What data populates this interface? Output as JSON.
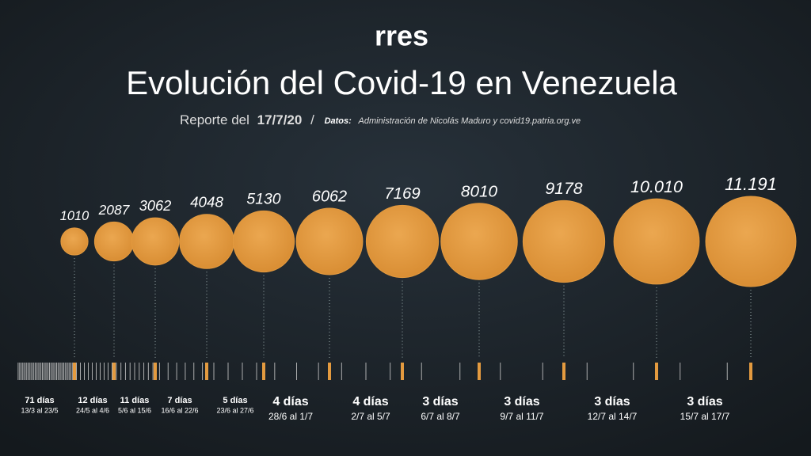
{
  "chart_data": {
    "type": "bubble",
    "logo": "rres",
    "title": "Evolución del Covid-19 en Venezuela",
    "subtitle": "Reporte del",
    "date": "17/7/20",
    "separator": "/",
    "source_label": "Datos:",
    "source": "Administración de Nicolás Maduro y covid19.patria.org.ve",
    "color": "#e39a3f",
    "values": [
      1010,
      2087,
      3062,
      4048,
      5130,
      6062,
      7169,
      8010,
      9178,
      10010,
      11191
    ],
    "value_labels": [
      "1010",
      "2087",
      "3062",
      "4048",
      "5130",
      "6062",
      "7169",
      "8010",
      "9178",
      "10.010",
      "11.191"
    ],
    "periods": [
      {
        "days": "71 días",
        "range": "13/3 al 23/5"
      },
      {
        "days": "12 días",
        "range": "24/5 al 4/6"
      },
      {
        "days": "11 días",
        "range": "5/6 al 15/6"
      },
      {
        "days": "7 días",
        "range": "16/6 al 22/6"
      },
      {
        "days": "5 días",
        "range": "23/6 al 27/6"
      },
      {
        "days": "4 días",
        "range": "28/6 al 1/7"
      },
      {
        "days": "4 días",
        "range": "2/7 al 5/7"
      },
      {
        "days": "3 días",
        "range": "6/7 al 8/7"
      },
      {
        "days": "3 días",
        "range": "9/7 al 11/7"
      },
      {
        "days": "3 días",
        "range": "12/7 al 14/7"
      },
      {
        "days": "3 días",
        "range": "15/7 al 17/7"
      }
    ]
  }
}
